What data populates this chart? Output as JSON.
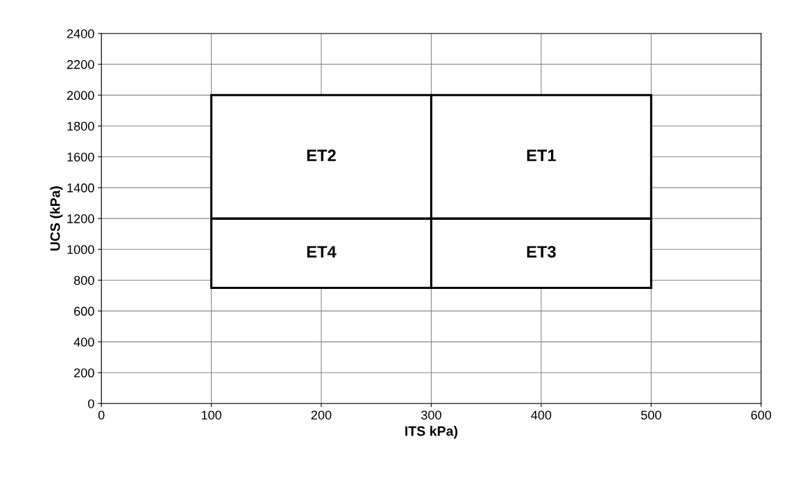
{
  "chart_data": {
    "type": "bar",
    "xlabel": "ITS kPa)",
    "ylabel": "UCS (kPa)",
    "x": [
      200,
      400
    ],
    "series": [
      {
        "color": "#ffffff",
        "base": [
          750,
          750
        ],
        "values": [
          450,
          450
        ]
      },
      {
        "color": "#ffffff",
        "base": [
          1200,
          1200
        ],
        "values": [
          800,
          800
        ]
      }
    ],
    "annotations": [
      "ET2",
      "ET1",
      "ET4",
      "ET3"
    ],
    "xlim": [
      0,
      600
    ],
    "xticks": [
      0,
      100,
      200,
      300,
      400,
      500,
      600
    ],
    "ylim": [
      0,
      2400
    ],
    "yticks": [
      0,
      200,
      400,
      600,
      800,
      1000,
      1200,
      1400,
      1600,
      1800,
      2000,
      2200,
      2400
    ],
    "grid": true
  }
}
